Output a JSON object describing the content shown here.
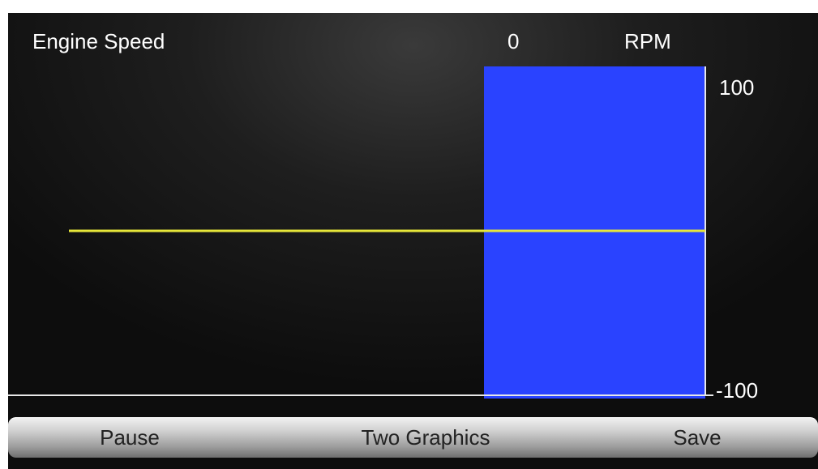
{
  "header": {
    "title": "Engine Speed",
    "value": "0",
    "unit": "RPM"
  },
  "graph": {
    "y_max_label": "100",
    "y_min_label": "-100",
    "current_value": 0,
    "colors": {
      "trace": "#e6e63a",
      "bar": "#2a43ff",
      "axis": "#e8e8e8"
    }
  },
  "toolbar": {
    "pause_label": "Pause",
    "two_graphics_label": "Two Graphics",
    "save_label": "Save"
  }
}
